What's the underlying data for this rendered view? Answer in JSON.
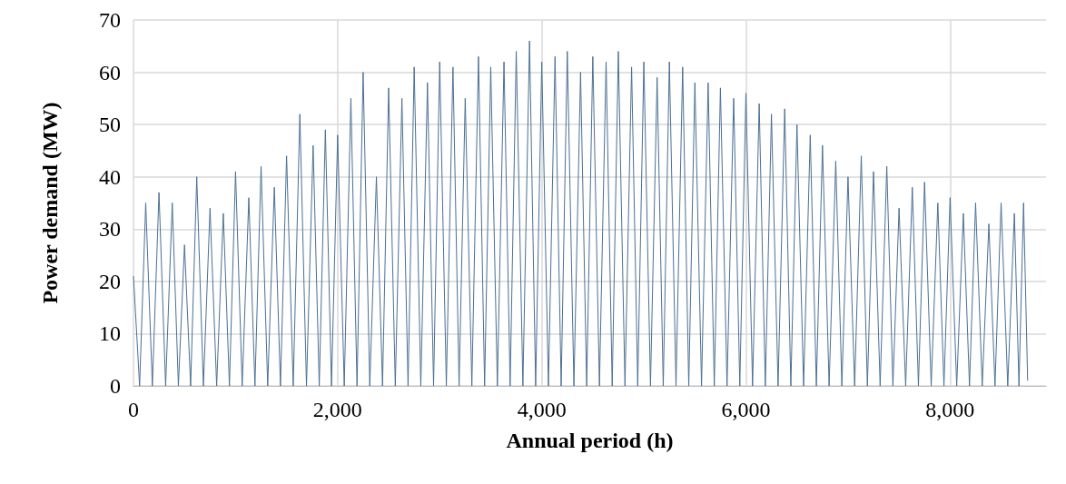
{
  "chart_data": {
    "type": "line",
    "xlabel": "Annual period (h)",
    "ylabel": "Power demand (MW)",
    "color": "#4a6f94",
    "xlim": [
      0,
      8940
    ],
    "xticks": [
      {
        "value": 0,
        "label": "0"
      },
      {
        "value": 2000,
        "label": "2,000"
      },
      {
        "value": 4000,
        "label": "4,000"
      },
      {
        "value": 6000,
        "label": "6,000"
      },
      {
        "value": 8000,
        "label": "8,000"
      }
    ],
    "ylim": [
      0,
      70
    ],
    "yticks": [
      0,
      10,
      20,
      30,
      40,
      50,
      60,
      70
    ],
    "grid": true,
    "marker": "none",
    "line_style": "solid",
    "x": [
      0,
      60,
      120,
      185,
      250,
      315,
      380,
      440,
      500,
      560,
      620,
      685,
      750,
      815,
      880,
      940,
      1000,
      1065,
      1130,
      1190,
      1250,
      1315,
      1380,
      1440,
      1500,
      1565,
      1630,
      1695,
      1760,
      1820,
      1880,
      1940,
      2000,
      2065,
      2130,
      2190,
      2250,
      2315,
      2380,
      2440,
      2500,
      2565,
      2630,
      2690,
      2750,
      2815,
      2880,
      2940,
      3000,
      3065,
      3130,
      3190,
      3250,
      3315,
      3380,
      3440,
      3500,
      3565,
      3630,
      3690,
      3750,
      3815,
      3880,
      3940,
      4000,
      4065,
      4130,
      4190,
      4250,
      4315,
      4380,
      4440,
      4500,
      4565,
      4630,
      4690,
      4750,
      4815,
      4880,
      4940,
      5000,
      5065,
      5130,
      5190,
      5250,
      5315,
      5380,
      5440,
      5500,
      5565,
      5630,
      5690,
      5750,
      5815,
      5880,
      5940,
      6000,
      6065,
      6130,
      6190,
      6250,
      6315,
      6380,
      6440,
      6500,
      6565,
      6630,
      6690,
      6750,
      6815,
      6880,
      6940,
      7000,
      7065,
      7130,
      7190,
      7250,
      7315,
      7380,
      7440,
      7500,
      7565,
      7630,
      7690,
      7750,
      7815,
      7880,
      7940,
      8000,
      8065,
      8130,
      8190,
      8250,
      8315,
      8380,
      8440,
      8500,
      8565,
      8630,
      8675,
      8720,
      8760
    ],
    "values": [
      21,
      0,
      35,
      0,
      37,
      0,
      35,
      0,
      27,
      0,
      40,
      0,
      34,
      0,
      33,
      0,
      41,
      0,
      36,
      0,
      42,
      0,
      38,
      0,
      44,
      0,
      52,
      0,
      46,
      0,
      49,
      0,
      48,
      0,
      55,
      0,
      60,
      0,
      40,
      0,
      57,
      0,
      55,
      0,
      61,
      0,
      58,
      0,
      62,
      0,
      61,
      0,
      55,
      0,
      63,
      0,
      61,
      0,
      62,
      0,
      64,
      0,
      66,
      0,
      62,
      0,
      63,
      0,
      64,
      0,
      60,
      0,
      63,
      0,
      62,
      0,
      64,
      0,
      61,
      0,
      62,
      0,
      59,
      0,
      62,
      0,
      61,
      0,
      58,
      0,
      58,
      0,
      57,
      0,
      55,
      0,
      56,
      0,
      54,
      0,
      52,
      0,
      53,
      0,
      50,
      0,
      48,
      0,
      46,
      0,
      43,
      0,
      40,
      0,
      44,
      0,
      41,
      0,
      42,
      0,
      34,
      0,
      38,
      0,
      39,
      0,
      35,
      0,
      36,
      0,
      33,
      0,
      35,
      0,
      31,
      0,
      35,
      0,
      33,
      0,
      35,
      1
    ]
  }
}
